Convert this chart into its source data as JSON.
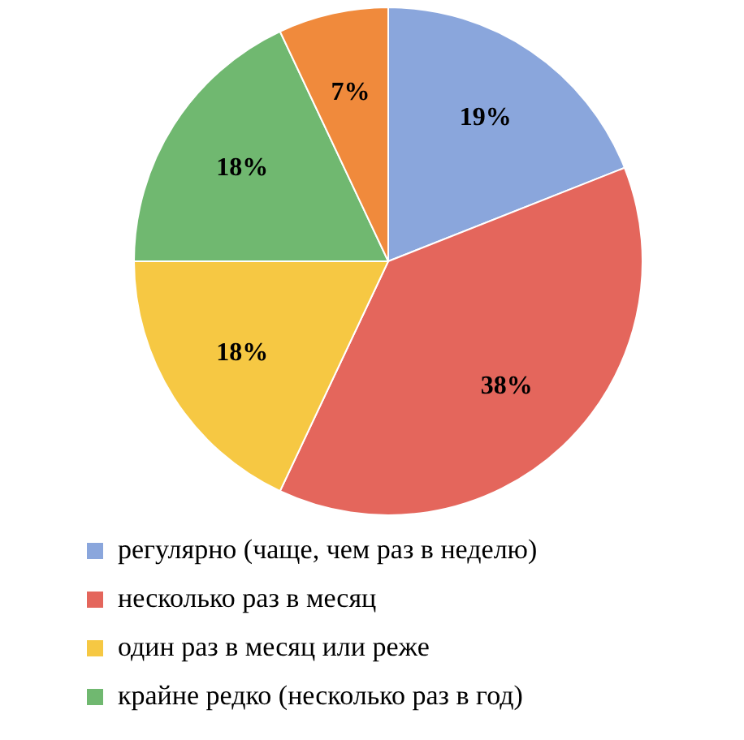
{
  "chart_data": {
    "type": "pie",
    "categories": [
      "регулярно (чаще, чем раз в неделю)",
      "несколько раз в месяц",
      "один раз в месяц или реже",
      "крайне редко (несколько раз в год)",
      null
    ],
    "values": [
      19,
      38,
      18,
      18,
      7
    ],
    "colors": [
      "#8aa6dc",
      "#e4665c",
      "#f6c843",
      "#70b870",
      "#f08a3c"
    ],
    "value_labels": [
      "19%",
      "38%",
      "18%",
      "18%",
      "7%"
    ],
    "legend": "bottom"
  }
}
